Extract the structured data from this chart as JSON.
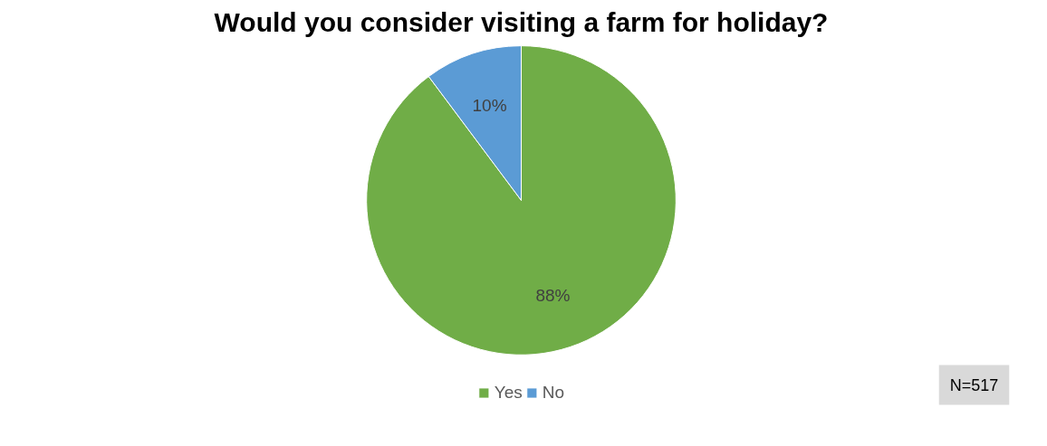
{
  "chart_data": {
    "type": "pie",
    "title": "Would you consider visiting a farm for holiday?",
    "categories": [
      "Yes",
      "No"
    ],
    "values": [
      88,
      10
    ],
    "colors": [
      "#70ad47",
      "#5b9bd5"
    ],
    "value_labels": [
      "88%",
      "10%"
    ],
    "legend": "bottom",
    "annotations": [
      "N=517"
    ]
  }
}
